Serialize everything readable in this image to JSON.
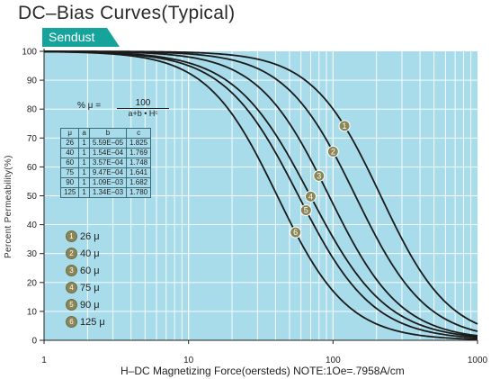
{
  "title": "DC–Bias Curves(Typical)",
  "material_tag": "Sendust",
  "colors": {
    "plot_bg": "#a8dcea",
    "grid": "#ffffff",
    "curve": "#1a1a1a",
    "tag": "#16a39c",
    "marker": "#8a8658"
  },
  "formula": {
    "lhs": "% μ =",
    "numerator": "100",
    "denominator": "a+b • Hᶜ"
  },
  "coef_table": {
    "headers": [
      "μ",
      "a",
      "b",
      "c"
    ],
    "rows": [
      [
        "26",
        "1",
        "5.59E–05",
        "1.825"
      ],
      [
        "40",
        "1",
        "1.54E–04",
        "1.769"
      ],
      [
        "60",
        "1",
        "3.57E–04",
        "1.748"
      ],
      [
        "75",
        "1",
        "9.47E–04",
        "1.641"
      ],
      [
        "90",
        "1",
        "1.09E–03",
        "1.682"
      ],
      [
        "125",
        "1",
        "1.34E–03",
        "1.780"
      ]
    ]
  },
  "legend": [
    {
      "num": "1",
      "label": "26 μ"
    },
    {
      "num": "2",
      "label": "40 μ"
    },
    {
      "num": "3",
      "label": "60 μ"
    },
    {
      "num": "4",
      "label": "75 μ"
    },
    {
      "num": "5",
      "label": "90 μ"
    },
    {
      "num": "6",
      "label": "125 μ"
    }
  ],
  "chart_data": {
    "type": "line",
    "xlabel": "H–DC Magnetizing Force(oersteds)   NOTE:1Oe=.7958A/cm",
    "ylabel": "Percent Permeability(%)",
    "x_scale": "log",
    "xlim": [
      1,
      1000
    ],
    "ylim": [
      0,
      100
    ],
    "x_ticks": [
      "1",
      "10",
      "100",
      "1000"
    ],
    "y_ticks": [
      "0",
      "10",
      "20",
      "30",
      "40",
      "50",
      "60",
      "70",
      "80",
      "90",
      "100"
    ],
    "grid": true,
    "series": [
      {
        "name": "1",
        "a": 1,
        "b": 5.59e-05,
        "c": 1.825,
        "label_at": [
          120,
          75
        ]
      },
      {
        "name": "2",
        "a": 1,
        "b": 0.000154,
        "c": 1.769,
        "label_at": [
          100,
          67
        ]
      },
      {
        "name": "3",
        "a": 1,
        "b": 0.000357,
        "c": 1.748,
        "label_at": [
          80,
          58
        ]
      },
      {
        "name": "4",
        "a": 1,
        "b": 0.000947,
        "c": 1.641,
        "label_at": [
          70,
          50
        ]
      },
      {
        "name": "5",
        "a": 1,
        "b": 0.00109,
        "c": 1.682,
        "label_at": [
          65,
          44
        ]
      },
      {
        "name": "6",
        "a": 1,
        "b": 0.00134,
        "c": 1.78,
        "label_at": [
          55,
          36
        ]
      }
    ]
  }
}
